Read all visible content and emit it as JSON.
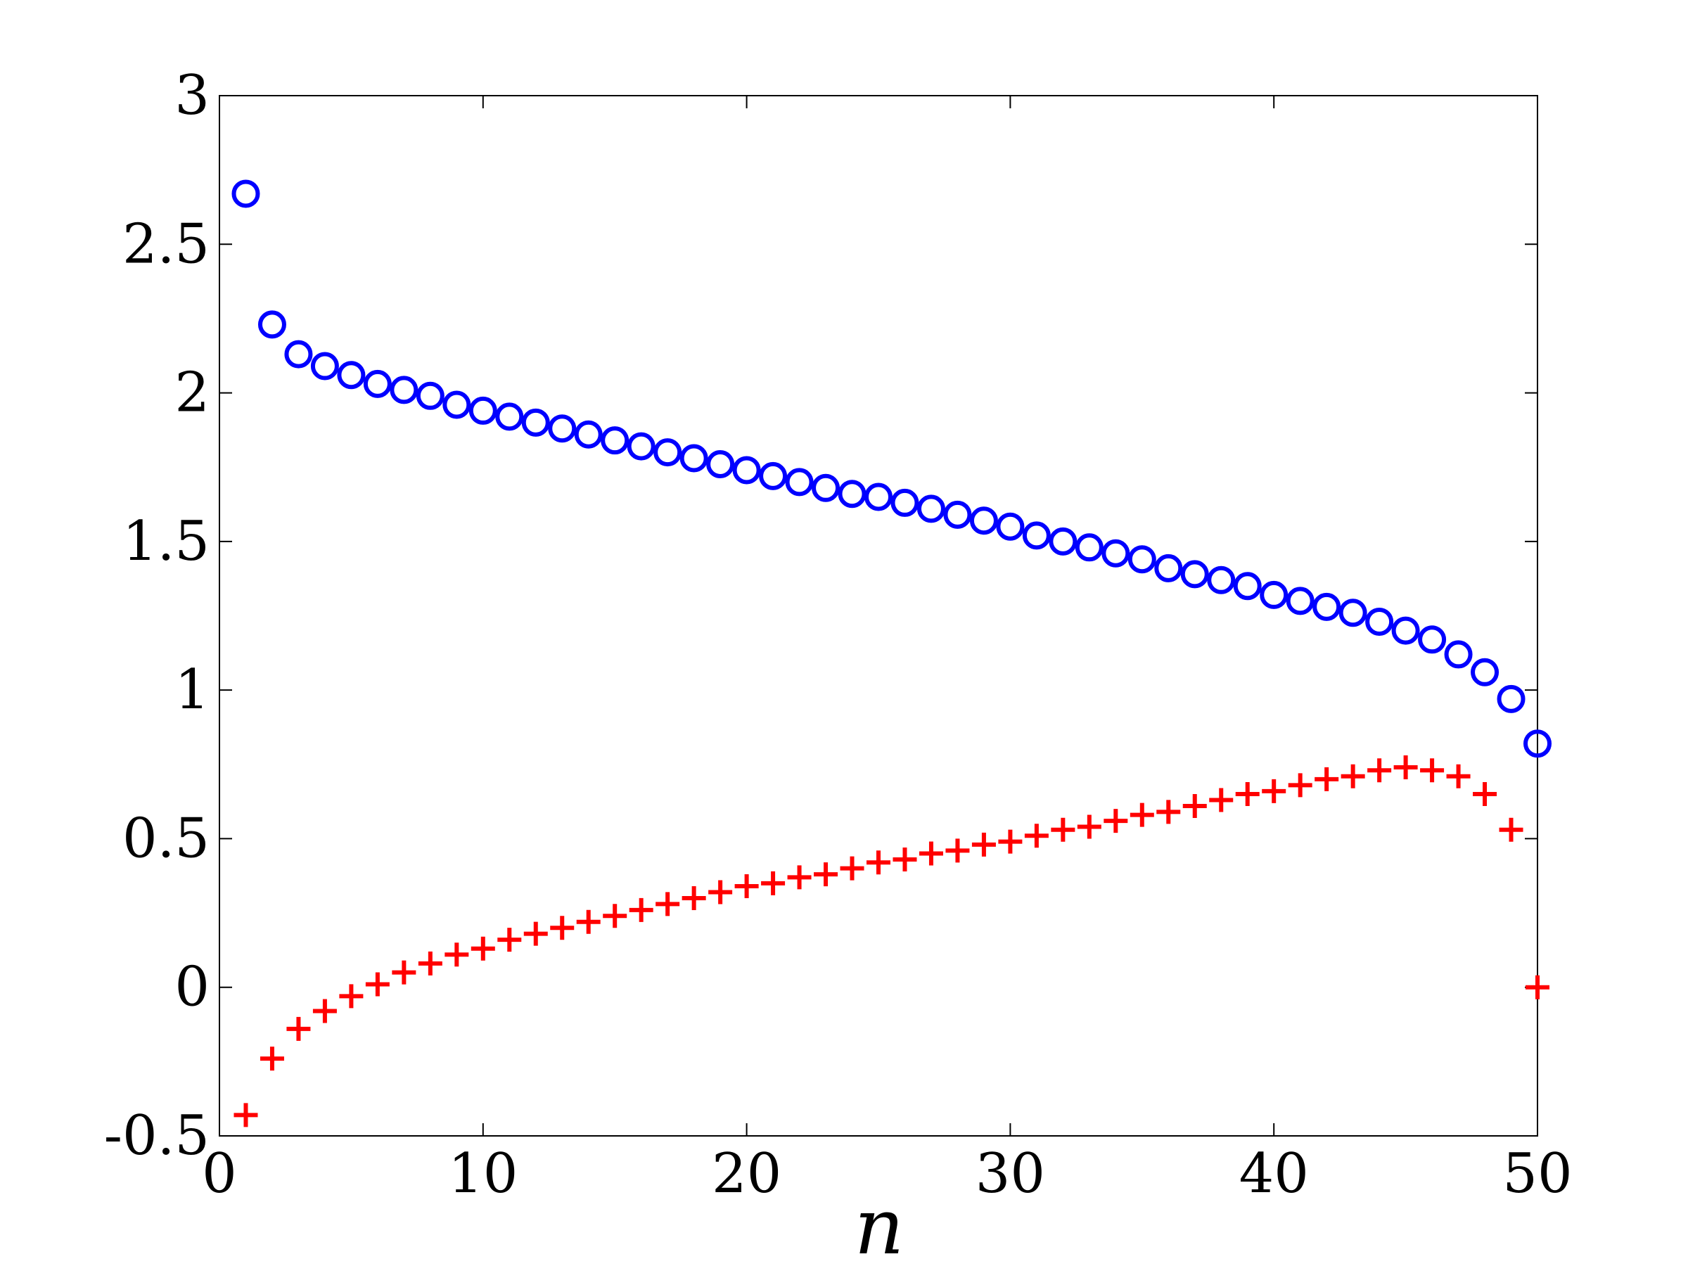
{
  "chart_data": {
    "type": "scatter",
    "title": "",
    "xlabel": "n",
    "ylabel": "",
    "xlim": [
      0,
      50
    ],
    "ylim": [
      -0.5,
      3
    ],
    "xticks": [
      0,
      10,
      20,
      30,
      40,
      50
    ],
    "xtick_labels": [
      "0",
      "10",
      "20",
      "30",
      "40",
      "50"
    ],
    "yticks": [
      -0.5,
      0,
      0.5,
      1,
      1.5,
      2,
      2.5,
      3
    ],
    "ytick_labels": [
      "-0.5",
      "0",
      "0.5",
      "1",
      "1.5",
      "2",
      "2.5",
      "3"
    ],
    "grid": false,
    "legend": "none",
    "series": [
      {
        "marker": "circle",
        "color": "#0000ff",
        "x": [
          1,
          2,
          3,
          4,
          5,
          6,
          7,
          8,
          9,
          10,
          11,
          12,
          13,
          14,
          15,
          16,
          17,
          18,
          19,
          20,
          21,
          22,
          23,
          24,
          25,
          26,
          27,
          28,
          29,
          30,
          31,
          32,
          33,
          34,
          35,
          36,
          37,
          38,
          39,
          40,
          41,
          42,
          43,
          44,
          45,
          46,
          47,
          48,
          49,
          50
        ],
        "y": [
          2.67,
          2.23,
          2.13,
          2.09,
          2.06,
          2.03,
          2.01,
          1.99,
          1.96,
          1.94,
          1.92,
          1.9,
          1.88,
          1.86,
          1.84,
          1.82,
          1.8,
          1.78,
          1.76,
          1.74,
          1.72,
          1.7,
          1.68,
          1.66,
          1.65,
          1.63,
          1.61,
          1.59,
          1.57,
          1.55,
          1.52,
          1.5,
          1.48,
          1.46,
          1.44,
          1.41,
          1.39,
          1.37,
          1.35,
          1.32,
          1.3,
          1.28,
          1.26,
          1.23,
          1.2,
          1.17,
          1.12,
          1.06,
          0.97,
          0.82
        ]
      },
      {
        "marker": "plus",
        "color": "#ff0000",
        "x": [
          1,
          2,
          3,
          4,
          5,
          6,
          7,
          8,
          9,
          10,
          11,
          12,
          13,
          14,
          15,
          16,
          17,
          18,
          19,
          20,
          21,
          22,
          23,
          24,
          25,
          26,
          27,
          28,
          29,
          30,
          31,
          32,
          33,
          34,
          35,
          36,
          37,
          38,
          39,
          40,
          41,
          42,
          43,
          44,
          45,
          46,
          47,
          48,
          49,
          50
        ],
        "y": [
          -0.43,
          -0.24,
          -0.14,
          -0.08,
          -0.03,
          0.01,
          0.05,
          0.08,
          0.11,
          0.13,
          0.16,
          0.18,
          0.2,
          0.22,
          0.24,
          0.26,
          0.28,
          0.3,
          0.32,
          0.34,
          0.35,
          0.37,
          0.38,
          0.4,
          0.42,
          0.43,
          0.45,
          0.46,
          0.48,
          0.49,
          0.51,
          0.53,
          0.54,
          0.56,
          0.58,
          0.59,
          0.61,
          0.63,
          0.65,
          0.66,
          0.68,
          0.7,
          0.71,
          0.73,
          0.74,
          0.73,
          0.71,
          0.65,
          0.53,
          0.0
        ]
      }
    ]
  }
}
